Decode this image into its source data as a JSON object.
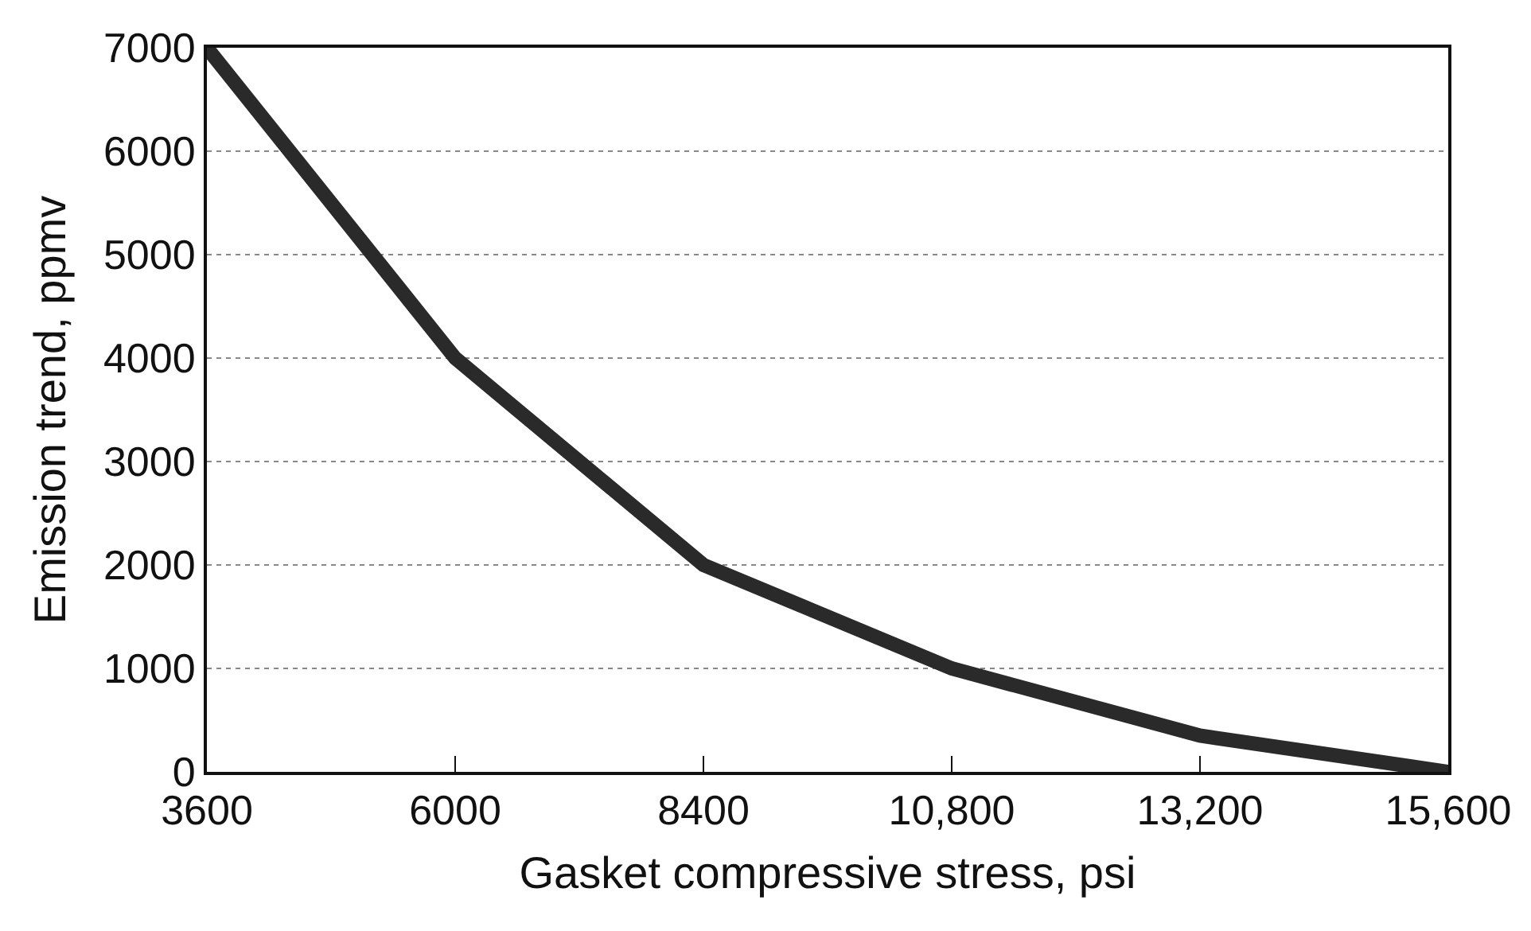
{
  "chart_data": {
    "type": "line",
    "xlabel": "Gasket compressive stress, psi",
    "ylabel": "Emission trend, ppmv",
    "x": [
      3600,
      6000,
      8400,
      10800,
      13200,
      15600
    ],
    "series": [
      {
        "color": "#2a2a2a",
        "values": [
          7000,
          4000,
          2000,
          1000,
          350,
          0
        ]
      }
    ],
    "xlim": [
      3600,
      15600
    ],
    "ylim": [
      0,
      7000
    ],
    "xticks": [
      3600,
      6000,
      8400,
      {
        "value": 10800,
        "label": "10,800"
      },
      {
        "value": 13200,
        "label": "13,200"
      },
      {
        "value": 15600,
        "label": "15,600"
      }
    ],
    "yticks": [
      0,
      1000,
      2000,
      3000,
      4000,
      5000,
      6000,
      7000
    ],
    "grid": "y",
    "line_style": "solid"
  }
}
